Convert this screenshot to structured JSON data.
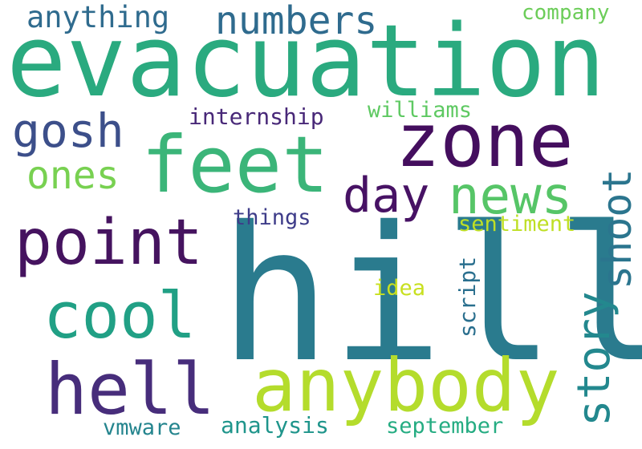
{
  "words": {
    "evacuation": {
      "text": "evacuation",
      "color": "#2aaa7f"
    },
    "hill": {
      "text": "hill",
      "color": "#2a7b8e"
    },
    "feet": {
      "text": "feet",
      "color": "#3bb579"
    },
    "zone": {
      "text": "zone",
      "color": "#440e5e"
    },
    "anybody": {
      "text": "anybody",
      "color": "#b4dc2c"
    },
    "point": {
      "text": "point",
      "color": "#45135f"
    },
    "hell": {
      "text": "hell",
      "color": "#472d7b"
    },
    "news": {
      "text": "news",
      "color": "#56c567"
    },
    "day": {
      "text": "day",
      "color": "#471264"
    },
    "cool": {
      "text": "cool",
      "color": "#21a085"
    },
    "numbers": {
      "text": "numbers",
      "color": "#2f6b8e"
    },
    "gosh": {
      "text": "gosh",
      "color": "#3c4f8a"
    },
    "story": {
      "text": "story",
      "color": "#23888e"
    },
    "shoot": {
      "text": "shoot",
      "color": "#2b758e"
    },
    "ones": {
      "text": "ones",
      "color": "#78d151"
    },
    "anything": {
      "text": "anything",
      "color": "#2f6b8e"
    },
    "company": {
      "text": "company",
      "color": "#6ccd59"
    },
    "internship": {
      "text": "internship",
      "color": "#482878"
    },
    "williams": {
      "text": "williams",
      "color": "#5ec962"
    },
    "things": {
      "text": "things",
      "color": "#3e3c89"
    },
    "sentiment": {
      "text": "sentiment",
      "color": "#bfdf25"
    },
    "idea": {
      "text": "idea",
      "color": "#c8e020"
    },
    "script": {
      "text": "script",
      "color": "#2a6f8e"
    },
    "vmware": {
      "text": "vmware",
      "color": "#25858e"
    },
    "analysis": {
      "text": "analysis",
      "color": "#1f958b"
    },
    "september": {
      "text": "september",
      "color": "#25ac82"
    }
  }
}
